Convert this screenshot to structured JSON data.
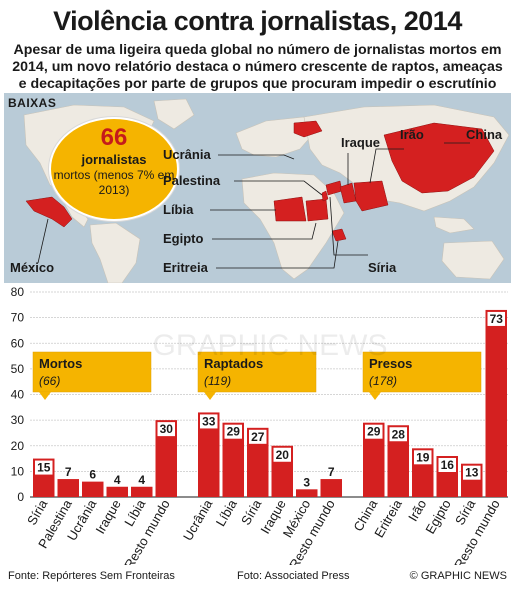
{
  "title": "Violência contra jornalistas, 2014",
  "subtitle": "Apesar de uma ligeira queda global no número de jornalistas mortos em 2014, um novo relatório destaca o número crescente de raptos, ameaças e decapitações por parte de grupos que procuram impedir o escrutínio",
  "map": {
    "section_label": "BAIXAS",
    "stat_number": "66",
    "stat_line1": "jornalistas",
    "stat_line2": "mortos (menos 7% em 2013)",
    "countries": [
      "Ucrânia",
      "Palestina",
      "Líbia",
      "Egipto",
      "Eritreia",
      "Iraque",
      "Irão",
      "China",
      "Síria",
      "México"
    ],
    "highlight_color": "#d42020"
  },
  "footer": {
    "source": "Fonte: Repórteres Sem Fronteiras",
    "photo": "Foto: Associated Press",
    "credit": "© GRAPHIC NEWS"
  },
  "watermark": "GRAPHIC NEWS",
  "chart_data": {
    "type": "bar",
    "ylim": [
      0,
      80
    ],
    "yticks": [
      0,
      10,
      20,
      30,
      40,
      50,
      60,
      70,
      80
    ],
    "grid": true,
    "bar_color": "#d42020",
    "groups": [
      {
        "name": "Mortos",
        "total": "(66)",
        "categories": [
          "Síria",
          "Palestina",
          "Ucrânia",
          "Iraque",
          "Líbia",
          "Resto mundo"
        ],
        "values": [
          15,
          7,
          6,
          4,
          4,
          30
        ]
      },
      {
        "name": "Raptados",
        "total": "(119)",
        "categories": [
          "Ucrânia",
          "Líbia",
          "Síria",
          "Iraque",
          "México",
          "Resto mundo"
        ],
        "values": [
          33,
          29,
          27,
          20,
          3,
          7
        ]
      },
      {
        "name": "Presos",
        "total": "(178)",
        "categories": [
          "China",
          "Eritreia",
          "Irão",
          "Egipto",
          "Síria",
          "Resto mundo"
        ],
        "values": [
          29,
          28,
          19,
          16,
          13,
          73
        ]
      }
    ]
  }
}
